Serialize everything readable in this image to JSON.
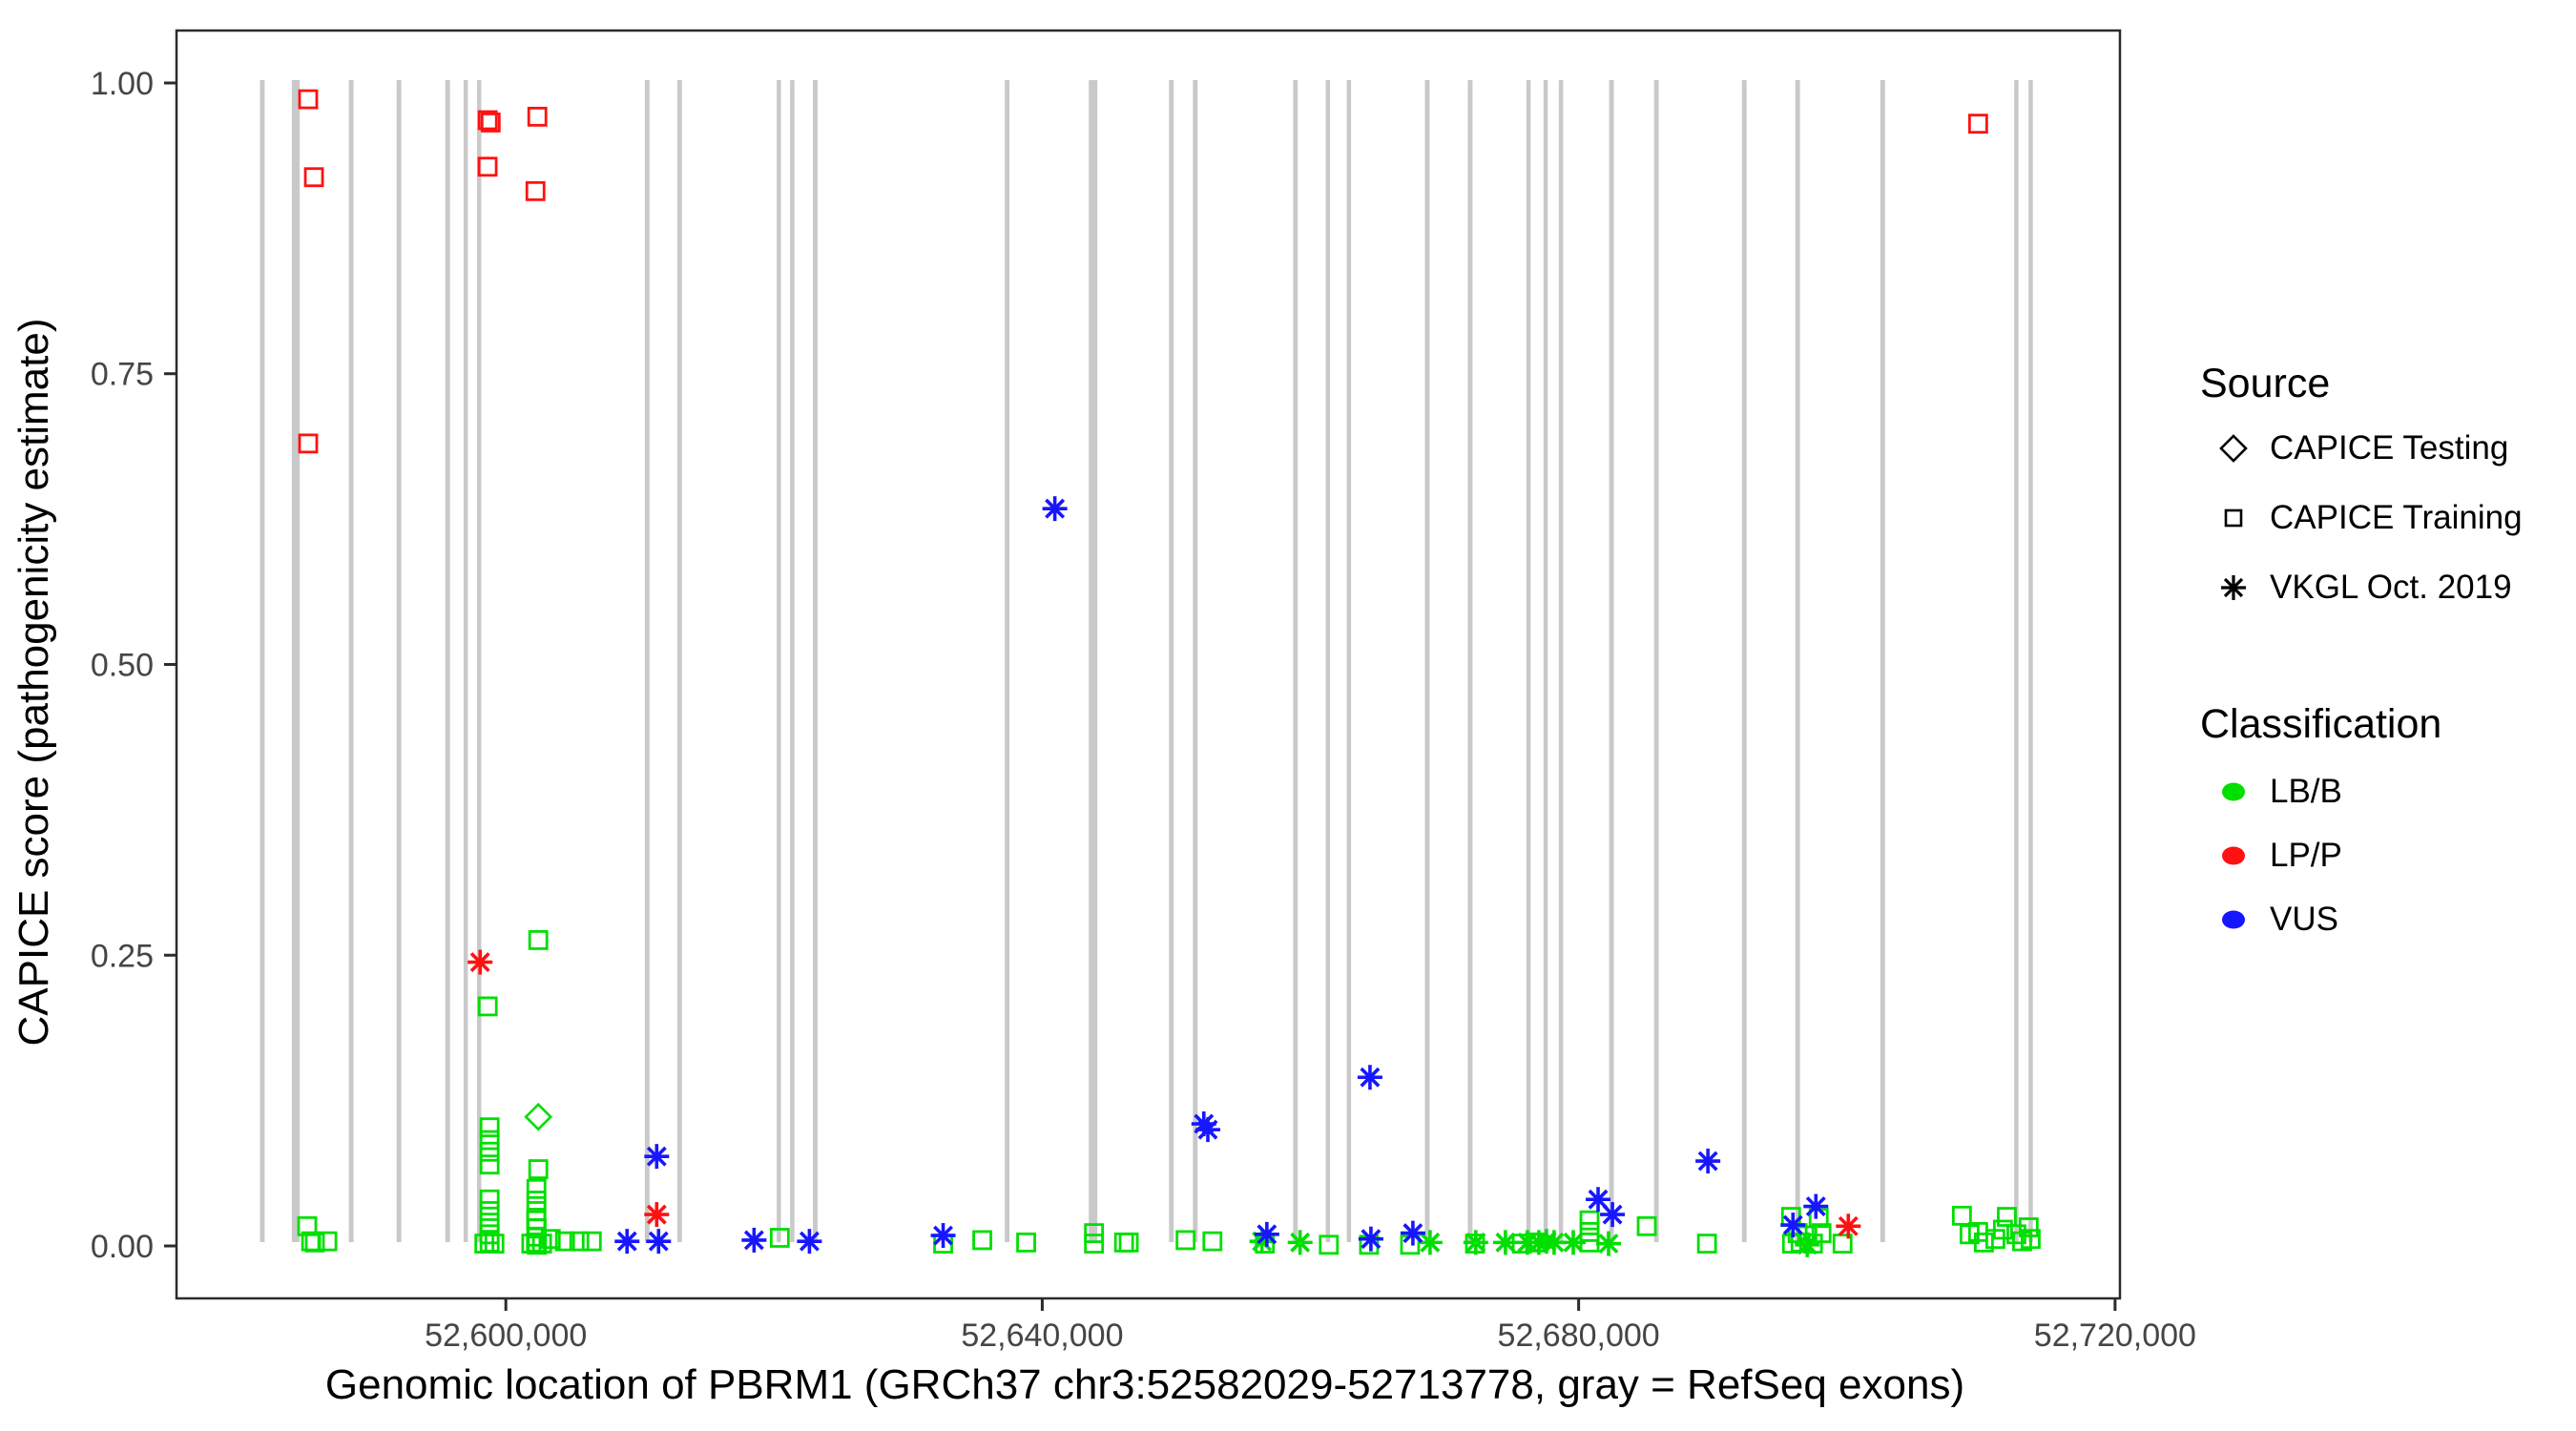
{
  "legend": {
    "source": {
      "title": "Source",
      "items": [
        {
          "shape": "diamond",
          "label": "CAPICE Testing"
        },
        {
          "shape": "square",
          "label": "CAPICE Training"
        },
        {
          "shape": "asterisk",
          "label": "VKGL Oct. 2019"
        }
      ]
    },
    "classification": {
      "title": "Classification",
      "items": [
        {
          "color_key": "lbb",
          "label": "LB/B"
        },
        {
          "color_key": "lpp",
          "label": "LP/P"
        },
        {
          "color_key": "vus",
          "label": "VUS"
        }
      ]
    }
  },
  "chart_data": {
    "type": "scatter",
    "title": "",
    "xlabel": "Genomic location of PBRM1 (GRCh37 chr3:52582029-52713778, gray = RefSeq exons)",
    "ylabel": "CAPICE score (pathogenicity estimate)",
    "x_domain": [
      52575442,
      52720365
    ],
    "y_domain": [
      -0.0451,
      1.0451
    ],
    "x_ticks": [
      {
        "value": 52600000,
        "label": "52,600,000"
      },
      {
        "value": 52640000,
        "label": "52,640,000"
      },
      {
        "value": 52680000,
        "label": "52,680,000"
      },
      {
        "value": 52720000,
        "label": "52,720,000"
      }
    ],
    "y_ticks": [
      {
        "value": 0.0,
        "label": "0.00"
      },
      {
        "value": 0.25,
        "label": "0.25"
      },
      {
        "value": 0.5,
        "label": "0.50"
      },
      {
        "value": 0.75,
        "label": "0.75"
      },
      {
        "value": 1.0,
        "label": "1.00"
      }
    ],
    "grid": false,
    "legend_position": "right",
    "colors": {
      "lbb": "#00DF00",
      "lpp": "#FF1111",
      "vus": "#1717FF",
      "source_marker": "#000000",
      "exon": "#C9C9C9",
      "axis": "#2B2B2B",
      "tick_text": "#454545"
    },
    "exons_note": "gray vertical bars = RefSeq exons, [center_bp, width_bp]",
    "exons": [
      [
        52581840,
        350
      ],
      [
        52584190,
        300
      ],
      [
        52584480,
        300
      ],
      [
        52588470,
        350
      ],
      [
        52592030,
        350
      ],
      [
        52595660,
        350
      ],
      [
        52597010,
        320
      ],
      [
        52598010,
        320
      ],
      [
        52610540,
        350
      ],
      [
        52612960,
        350
      ],
      [
        52620360,
        320
      ],
      [
        52621360,
        320
      ],
      [
        52623070,
        350
      ],
      [
        52637380,
        350
      ],
      [
        52643790,
        640
      ],
      [
        52649630,
        350
      ],
      [
        52651410,
        350
      ],
      [
        52658880,
        350
      ],
      [
        52661300,
        320
      ],
      [
        52662870,
        320
      ],
      [
        52668710,
        350
      ],
      [
        52671910,
        350
      ],
      [
        52676260,
        320
      ],
      [
        52677540,
        320
      ],
      [
        52678680,
        320
      ],
      [
        52682450,
        350
      ],
      [
        52685800,
        350
      ],
      [
        52692350,
        350
      ],
      [
        52696330,
        350
      ],
      [
        52702670,
        350
      ],
      [
        52712640,
        320
      ],
      [
        52713710,
        320
      ]
    ],
    "series": [
      {
        "name": "CAPICE Testing / LB/B",
        "source": "CAPICE Testing",
        "classification": "LB/B",
        "shape": "diamond",
        "color_key": "lbb",
        "points": [
          [
            52602420,
            0.111
          ]
        ]
      },
      {
        "name": "CAPICE Training / LB/B",
        "source": "CAPICE Training",
        "classification": "LB/B",
        "shape": "square",
        "color_key": "lbb",
        "points": [
          [
            52602420,
            0.263
          ],
          [
            52598650,
            0.206
          ],
          [
            52602420,
            0.066
          ],
          [
            52598790,
            0.102
          ],
          [
            52598790,
            0.091
          ],
          [
            52598790,
            0.081
          ],
          [
            52598790,
            0.07
          ],
          [
            52598790,
            0.04
          ],
          [
            52598790,
            0.03
          ],
          [
            52598790,
            0.02
          ],
          [
            52598790,
            0.01
          ],
          [
            52598790,
            0.003
          ],
          [
            52598400,
            0.002
          ],
          [
            52599150,
            0.002
          ],
          [
            52602280,
            0.049
          ],
          [
            52602280,
            0.039
          ],
          [
            52602280,
            0.03
          ],
          [
            52602260,
            0.022
          ],
          [
            52602300,
            0.015
          ],
          [
            52602280,
            0.008
          ],
          [
            52602250,
            0.003
          ],
          [
            52602320,
            0.001
          ],
          [
            52601900,
            0.002
          ],
          [
            52602700,
            0.002
          ],
          [
            52603350,
            0.006
          ],
          [
            52604410,
            0.004
          ],
          [
            52605480,
            0.004
          ],
          [
            52606410,
            0.004
          ],
          [
            52585190,
            0.017
          ],
          [
            52585480,
            0.004
          ],
          [
            52585760,
            0.003
          ],
          [
            52586690,
            0.004
          ],
          [
            52620430,
            0.007
          ],
          [
            52632610,
            0.002
          ],
          [
            52635530,
            0.005
          ],
          [
            52638800,
            0.003
          ],
          [
            52643860,
            0.011
          ],
          [
            52643860,
            0.002
          ],
          [
            52646100,
            0.003
          ],
          [
            52646450,
            0.003
          ],
          [
            52650690,
            0.005
          ],
          [
            52652690,
            0.004
          ],
          [
            52656600,
            0.002
          ],
          [
            52661370,
            0.001
          ],
          [
            52664370,
            0.001
          ],
          [
            52667430,
            0.001
          ],
          [
            52672270,
            0.002
          ],
          [
            52675760,
            0.002
          ],
          [
            52676750,
            0.003
          ],
          [
            52680810,
            0.022
          ],
          [
            52680810,
            0.012
          ],
          [
            52680810,
            0.003
          ],
          [
            52685080,
            0.017
          ],
          [
            52689570,
            0.002
          ],
          [
            52695840,
            0.025
          ],
          [
            52697900,
            0.024
          ],
          [
            52696330,
            0.011
          ],
          [
            52697050,
            0.009
          ],
          [
            52696550,
            0.003
          ],
          [
            52697470,
            0.002
          ],
          [
            52698110,
            0.011
          ],
          [
            52695910,
            0.002
          ],
          [
            52699680,
            0.002
          ],
          [
            52708580,
            0.026
          ],
          [
            52711930,
            0.025
          ],
          [
            52709150,
            0.01
          ],
          [
            52709790,
            0.012
          ],
          [
            52710220,
            0.003
          ],
          [
            52711070,
            0.006
          ],
          [
            52711640,
            0.014
          ],
          [
            52712640,
            0.01
          ],
          [
            52713070,
            0.004
          ],
          [
            52713560,
            0.016
          ],
          [
            52713710,
            0.006
          ]
        ]
      },
      {
        "name": "CAPICE Training / LP/P",
        "source": "CAPICE Training",
        "classification": "LP/P",
        "shape": "square",
        "color_key": "lpp",
        "points": [
          [
            52585260,
            0.986
          ],
          [
            52585690,
            0.919
          ],
          [
            52585260,
            0.69
          ],
          [
            52598650,
            0.968
          ],
          [
            52598870,
            0.966
          ],
          [
            52598640,
            0.928
          ],
          [
            52602350,
            0.971
          ],
          [
            52602210,
            0.907
          ],
          [
            52709790,
            0.965
          ]
        ]
      },
      {
        "name": "VKGL Oct. 2019 / LB/B",
        "source": "VKGL Oct. 2019",
        "classification": "LB/B",
        "shape": "asterisk",
        "color_key": "lbb",
        "points": [
          [
            52656380,
            0.004
          ],
          [
            52659230,
            0.003
          ],
          [
            52668920,
            0.003
          ],
          [
            52672330,
            0.003
          ],
          [
            52674540,
            0.003
          ],
          [
            52676180,
            0.003
          ],
          [
            52677030,
            0.003
          ],
          [
            52677600,
            0.004
          ],
          [
            52678170,
            0.003
          ],
          [
            52679600,
            0.003
          ],
          [
            52682230,
            0.002
          ],
          [
            52697050,
            0.001
          ]
        ]
      },
      {
        "name": "VKGL Oct. 2019 / VUS",
        "source": "VKGL Oct. 2019",
        "classification": "VUS",
        "shape": "asterisk",
        "color_key": "vus",
        "points": [
          [
            52640940,
            0.634
          ],
          [
            52664440,
            0.145
          ],
          [
            52652050,
            0.105
          ],
          [
            52652350,
            0.1
          ],
          [
            52611250,
            0.077
          ],
          [
            52689640,
            0.073
          ],
          [
            52681450,
            0.04
          ],
          [
            52697690,
            0.034
          ],
          [
            52682520,
            0.027
          ],
          [
            52695980,
            0.018
          ],
          [
            52667640,
            0.011
          ],
          [
            52656750,
            0.01
          ],
          [
            52632610,
            0.009
          ],
          [
            52664510,
            0.006
          ],
          [
            52618510,
            0.005
          ],
          [
            52609040,
            0.004
          ],
          [
            52611390,
            0.004
          ],
          [
            52622640,
            0.004
          ]
        ]
      },
      {
        "name": "VKGL Oct. 2019 / LP/P",
        "source": "VKGL Oct. 2019",
        "classification": "LP/P",
        "shape": "asterisk",
        "color_key": "lpp",
        "points": [
          [
            52598080,
            0.244
          ],
          [
            52611250,
            0.027
          ],
          [
            52700110,
            0.017
          ]
        ]
      }
    ]
  }
}
